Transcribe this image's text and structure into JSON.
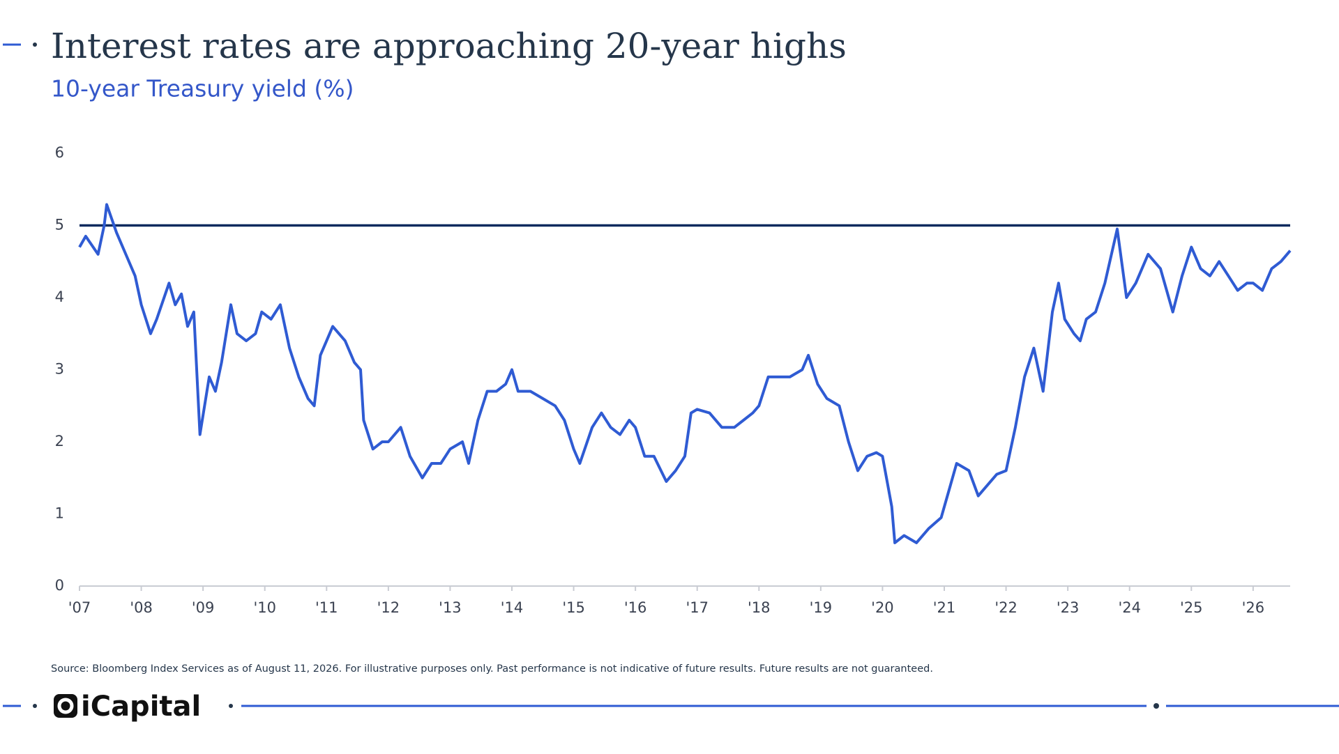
{
  "chart_data": {
    "type": "line",
    "title": "Interest rates are approaching 20-year highs",
    "subtitle": "10-year Treasury yield (%)",
    "source": "Source: Bloomberg Index Services as of August 11, 2026. For illustrative purposes only. Past performance is not indicative of future results. Future results are not guaranteed.",
    "x": [
      2007.0,
      2007.1,
      2007.3,
      2007.4,
      2007.44,
      2007.6,
      2007.75,
      2007.9,
      2008.0,
      2008.15,
      2008.25,
      2008.45,
      2008.55,
      2008.65,
      2008.75,
      2008.85,
      2008.95,
      2009.1,
      2009.2,
      2009.3,
      2009.45,
      2009.55,
      2009.7,
      2009.85,
      2009.95,
      2010.1,
      2010.25,
      2010.4,
      2010.55,
      2010.7,
      2010.8,
      2010.9,
      2011.0,
      2011.1,
      2011.3,
      2011.45,
      2011.55,
      2011.6,
      2011.75,
      2011.9,
      2012.0,
      2012.2,
      2012.35,
      2012.55,
      2012.7,
      2012.85,
      2013.0,
      2013.2,
      2013.3,
      2013.45,
      2013.6,
      2013.75,
      2013.9,
      2014.0,
      2014.1,
      2014.3,
      2014.5,
      2014.7,
      2014.85,
      2015.0,
      2015.1,
      2015.3,
      2015.45,
      2015.6,
      2015.75,
      2015.9,
      2016.0,
      2016.15,
      2016.3,
      2016.5,
      2016.65,
      2016.8,
      2016.9,
      2017.0,
      2017.2,
      2017.4,
      2017.6,
      2017.75,
      2017.9,
      2018.0,
      2018.15,
      2018.35,
      2018.5,
      2018.7,
      2018.8,
      2018.95,
      2019.1,
      2019.3,
      2019.45,
      2019.6,
      2019.75,
      2019.9,
      2020.0,
      2020.15,
      2020.2,
      2020.35,
      2020.55,
      2020.75,
      2020.95,
      2021.1,
      2021.2,
      2021.4,
      2021.55,
      2021.7,
      2021.85,
      2022.0,
      2022.15,
      2022.3,
      2022.45,
      2022.6,
      2022.75,
      2022.85,
      2022.95,
      2023.1,
      2023.2,
      2023.3,
      2023.45,
      2023.6,
      2023.8,
      2023.95,
      2024.1,
      2024.3,
      2024.5,
      2024.7,
      2024.85,
      2025.0,
      2025.15,
      2025.3,
      2025.45,
      2025.6,
      2025.75,
      2025.9,
      2026.0,
      2026.15,
      2026.3,
      2026.45,
      2026.6
    ],
    "series": [
      {
        "name": "10-year Treasury yield",
        "color": "#2f5bd3",
        "values": [
          4.7,
          4.85,
          4.6,
          5.0,
          5.29,
          4.9,
          4.6,
          4.3,
          3.9,
          3.5,
          3.7,
          4.2,
          3.9,
          4.05,
          3.6,
          3.8,
          2.1,
          2.9,
          2.7,
          3.1,
          3.9,
          3.5,
          3.4,
          3.5,
          3.8,
          3.7,
          3.9,
          3.3,
          2.9,
          2.6,
          2.5,
          3.2,
          3.4,
          3.6,
          3.4,
          3.1,
          3.0,
          2.3,
          1.9,
          2.0,
          2.0,
          2.2,
          1.8,
          1.5,
          1.7,
          1.7,
          1.9,
          2.0,
          1.7,
          2.3,
          2.7,
          2.7,
          2.8,
          3.0,
          2.7,
          2.7,
          2.6,
          2.5,
          2.3,
          1.9,
          1.7,
          2.2,
          2.4,
          2.2,
          2.1,
          2.3,
          2.2,
          1.8,
          1.8,
          1.45,
          1.6,
          1.8,
          2.4,
          2.45,
          2.4,
          2.2,
          2.2,
          2.3,
          2.4,
          2.5,
          2.9,
          2.9,
          2.9,
          3.0,
          3.2,
          2.8,
          2.6,
          2.5,
          2.0,
          1.6,
          1.8,
          1.85,
          1.8,
          1.1,
          0.6,
          0.7,
          0.6,
          0.8,
          0.95,
          1.4,
          1.7,
          1.6,
          1.25,
          1.4,
          1.55,
          1.6,
          2.2,
          2.9,
          3.3,
          2.7,
          3.8,
          4.2,
          3.7,
          3.5,
          3.4,
          3.7,
          3.8,
          4.2,
          4.95,
          4.0,
          4.2,
          4.6,
          4.4,
          3.8,
          4.3,
          4.7,
          4.4,
          4.3,
          4.5,
          4.3,
          4.1,
          4.2,
          4.2,
          4.1,
          4.4,
          4.5,
          4.65
        ]
      }
    ],
    "hline": 5,
    "hline_color": "#0c2a5e",
    "xlim": [
      2007,
      2026.6
    ],
    "ylim": [
      0,
      6
    ],
    "xticks": [
      {
        "value": 2007,
        "label": "'07"
      },
      {
        "value": 2008,
        "label": "'08"
      },
      {
        "value": 2009,
        "label": "'09"
      },
      {
        "value": 2010,
        "label": "'10"
      },
      {
        "value": 2011,
        "label": "'11"
      },
      {
        "value": 2012,
        "label": "'12"
      },
      {
        "value": 2013,
        "label": "'13"
      },
      {
        "value": 2014,
        "label": "'14"
      },
      {
        "value": 2015,
        "label": "'15"
      },
      {
        "value": 2016,
        "label": "'16"
      },
      {
        "value": 2017,
        "label": "'17"
      },
      {
        "value": 2018,
        "label": "'18"
      },
      {
        "value": 2019,
        "label": "'19"
      },
      {
        "value": 2020,
        "label": "'20"
      },
      {
        "value": 2021,
        "label": "'21"
      },
      {
        "value": 2022,
        "label": "'22"
      },
      {
        "value": 2023,
        "label": "'23"
      },
      {
        "value": 2024,
        "label": "'24"
      },
      {
        "value": 2025,
        "label": "'25"
      },
      {
        "value": 2026,
        "label": "'26"
      }
    ],
    "yticks": [
      0,
      1,
      2,
      3,
      4,
      5,
      6
    ],
    "grid": false
  },
  "footer": {
    "brand": "iCapital"
  }
}
